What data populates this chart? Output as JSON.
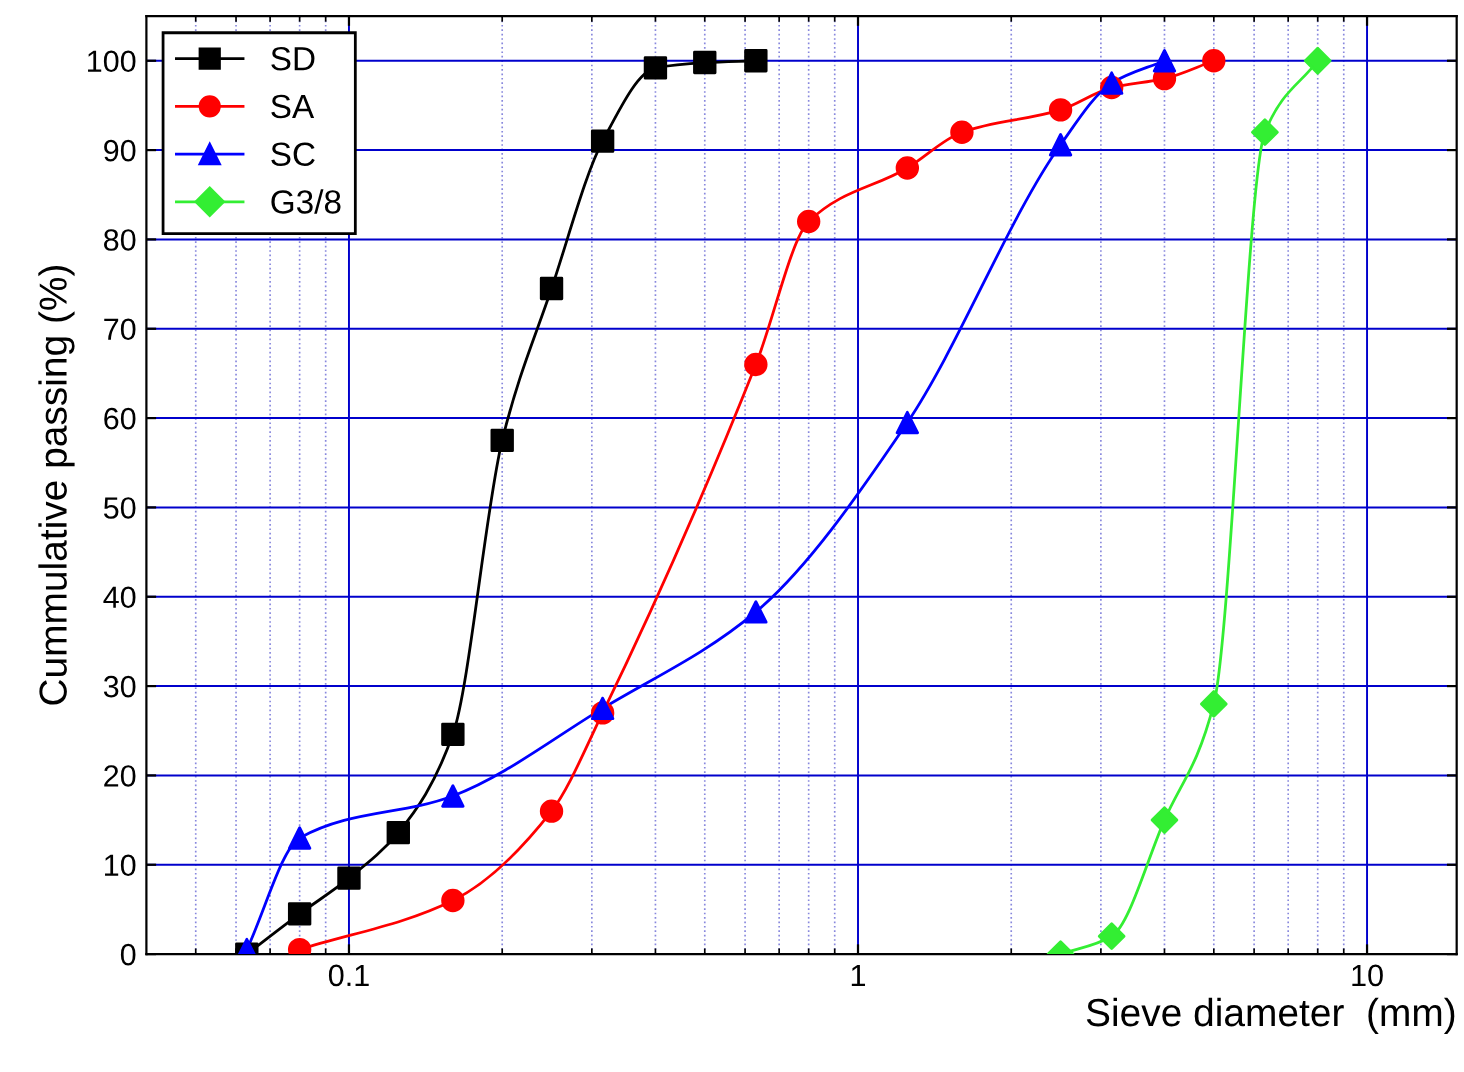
{
  "chart_data": {
    "type": "line",
    "xlabel": "Sieve diameter  (mm)",
    "ylabel": "Cummulative passing (%)",
    "log": "x",
    "xlim": [
      0.04,
      15
    ],
    "xticks": [
      {
        "value": 0.05,
        "label": null
      },
      {
        "value": 0.06,
        "label": null
      },
      {
        "value": 0.07,
        "label": null
      },
      {
        "value": 0.08,
        "label": null
      },
      {
        "value": 0.09,
        "label": null
      },
      0.1,
      {
        "value": 0.2,
        "label": null
      },
      {
        "value": 0.3,
        "label": null
      },
      {
        "value": 0.4,
        "label": null
      },
      {
        "value": 0.5,
        "label": null
      },
      {
        "value": 0.6,
        "label": null
      },
      {
        "value": 0.7,
        "label": null
      },
      {
        "value": 0.8,
        "label": null
      },
      {
        "value": 0.9,
        "label": null
      },
      1,
      {
        "value": 2,
        "label": null
      },
      {
        "value": 3,
        "label": null
      },
      {
        "value": 4,
        "label": null
      },
      {
        "value": 5,
        "label": null
      },
      {
        "value": 6,
        "label": null
      },
      {
        "value": 7,
        "label": null
      },
      {
        "value": 8,
        "label": null
      },
      {
        "value": 9,
        "label": null
      },
      10
    ],
    "ylim": [
      0,
      105
    ],
    "yticks": [
      0,
      10,
      20,
      30,
      40,
      50,
      60,
      70,
      80,
      90,
      100
    ],
    "grid": true,
    "legend": "top left",
    "series": [
      {
        "name": "SD",
        "color": "#000000",
        "marker": "square",
        "x": [
          0.063,
          0.08,
          0.1,
          0.125,
          0.16,
          0.2,
          0.25,
          0.315,
          0.4,
          0.5,
          0.63
        ],
        "values": [
          0,
          4.5,
          8.5,
          13.6,
          24.6,
          57.5,
          74.5,
          91,
          99.2,
          99.8,
          100
        ]
      },
      {
        "name": "SA",
        "color": "#ff0000",
        "marker": "circle",
        "x": [
          0.08,
          0.16,
          0.25,
          0.315,
          0.63,
          0.8,
          1.25,
          1.6,
          2.5,
          3.15,
          4,
          5
        ],
        "values": [
          0.5,
          6,
          16,
          27,
          66,
          82,
          88,
          92,
          94.5,
          97,
          98,
          100
        ]
      },
      {
        "name": "SC",
        "color": "#0000ff",
        "marker": "triangle",
        "x": [
          0.063,
          0.08,
          0.16,
          0.315,
          0.63,
          1.25,
          2.5,
          3.15,
          4
        ],
        "values": [
          0.5,
          13,
          17.7,
          27.5,
          38.3,
          59.5,
          90.6,
          97.5,
          100
        ]
      },
      {
        "name": "G3/8",
        "color": "#33ee33",
        "marker": "diamond",
        "x": [
          2.5,
          3.15,
          4,
          5,
          6.3,
          8
        ],
        "values": [
          0,
          2,
          15,
          28,
          92,
          100
        ]
      }
    ]
  }
}
